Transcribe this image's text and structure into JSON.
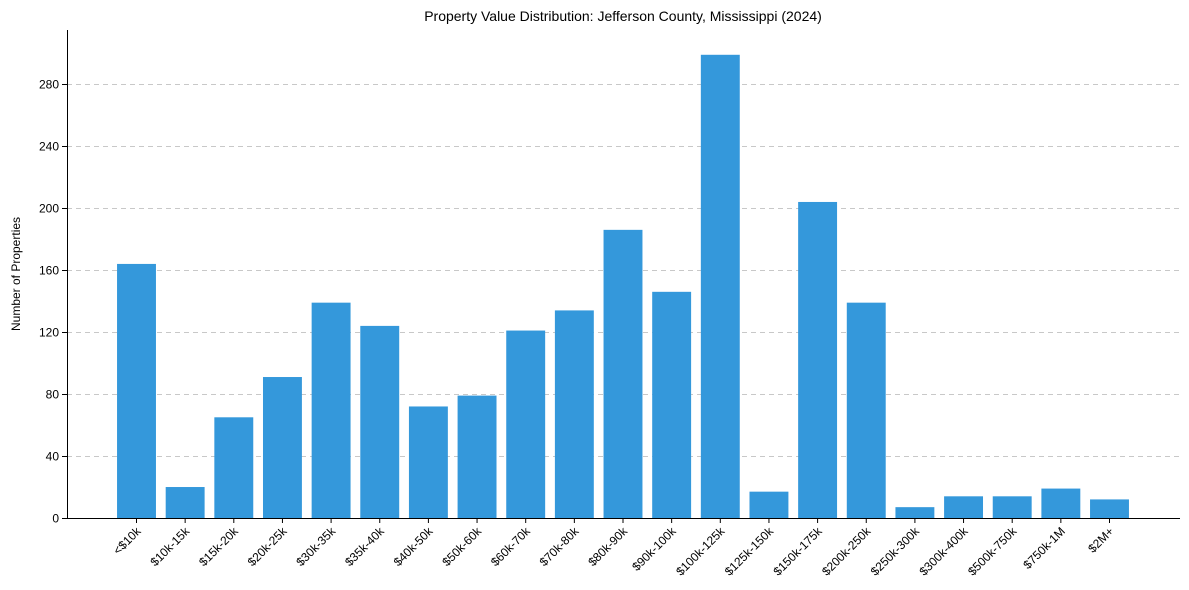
{
  "chart_data": {
    "type": "bar",
    "title": "Property Value Distribution: Jefferson County, Mississippi (2024)",
    "xlabel": "",
    "ylabel": "Number of Properties",
    "categories": [
      "<$10k",
      "$10k-15k",
      "$15k-20k",
      "$20k-25k",
      "$30k-35k",
      "$35k-40k",
      "$40k-50k",
      "$50k-60k",
      "$60k-70k",
      "$70k-80k",
      "$80k-90k",
      "$90k-100k",
      "$100k-125k",
      "$125k-150k",
      "$150k-175k",
      "$200k-250k",
      "$250k-300k",
      "$300k-400k",
      "$500k-750k",
      "$750k-1M",
      "$2M+"
    ],
    "values": [
      164,
      20,
      65,
      91,
      139,
      124,
      72,
      79,
      121,
      134,
      186,
      146,
      299,
      17,
      204,
      139,
      7,
      14,
      14,
      19,
      12
    ],
    "ylim": [
      0,
      315
    ],
    "yticks": [
      0,
      40,
      80,
      120,
      160,
      200,
      240,
      280
    ],
    "grid": "y-dashed",
    "color": "#3498db"
  }
}
